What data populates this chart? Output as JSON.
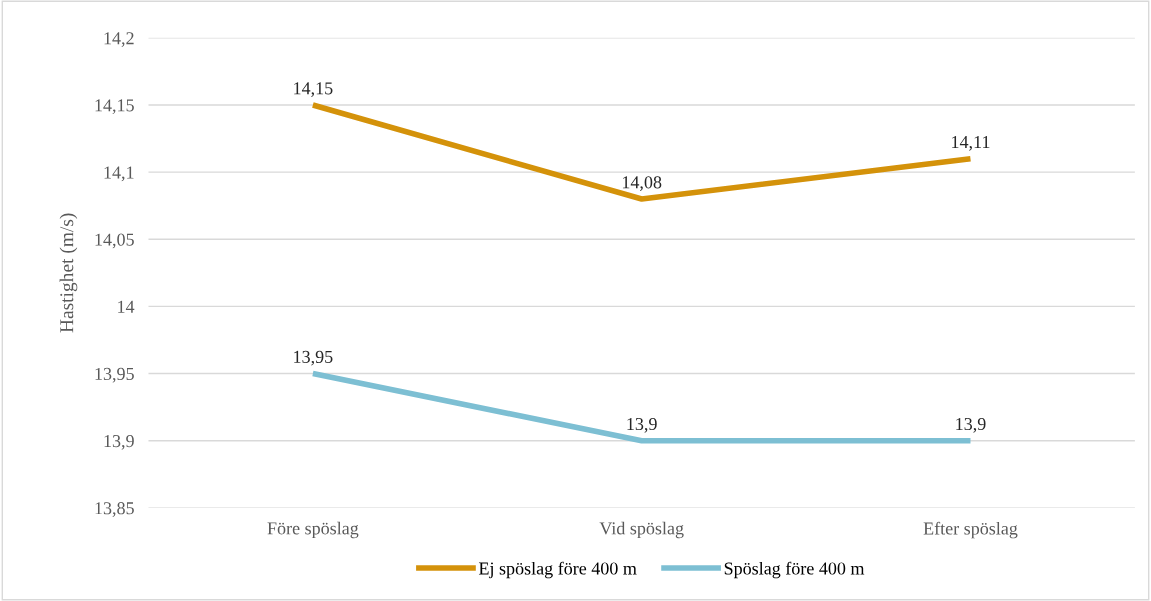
{
  "chart_data": {
    "type": "line",
    "ylabel": "Hastighet (m/s)",
    "categories": [
      "Före spöslag",
      "Vid spöslag",
      "Efter spöslag"
    ],
    "series": [
      {
        "name": "Ej spöslag före 400 m",
        "color": "#d4920a",
        "values": [
          14.15,
          14.08,
          14.11
        ],
        "value_labels": [
          "14,15",
          "14,08",
          "14,11"
        ]
      },
      {
        "name": "Spöslag före 400 m",
        "color": "#7dbfd3",
        "values": [
          13.95,
          13.9,
          13.9
        ],
        "value_labels": [
          "13,95",
          "13,9",
          "13,9"
        ]
      }
    ],
    "ylim": [
      13.85,
      14.2
    ],
    "yticks": [
      {
        "value": 13.85,
        "label": "13,85"
      },
      {
        "value": 13.9,
        "label": "13,9"
      },
      {
        "value": 13.95,
        "label": "13,95"
      },
      {
        "value": 14.0,
        "label": "14"
      },
      {
        "value": 14.05,
        "label": "14,05"
      },
      {
        "value": 14.1,
        "label": "14,1"
      },
      {
        "value": 14.15,
        "label": "14,15"
      },
      {
        "value": 14.2,
        "label": "14,2"
      }
    ],
    "grid": "y",
    "legend": "bottom",
    "marker": "none",
    "line_style": "solid"
  }
}
